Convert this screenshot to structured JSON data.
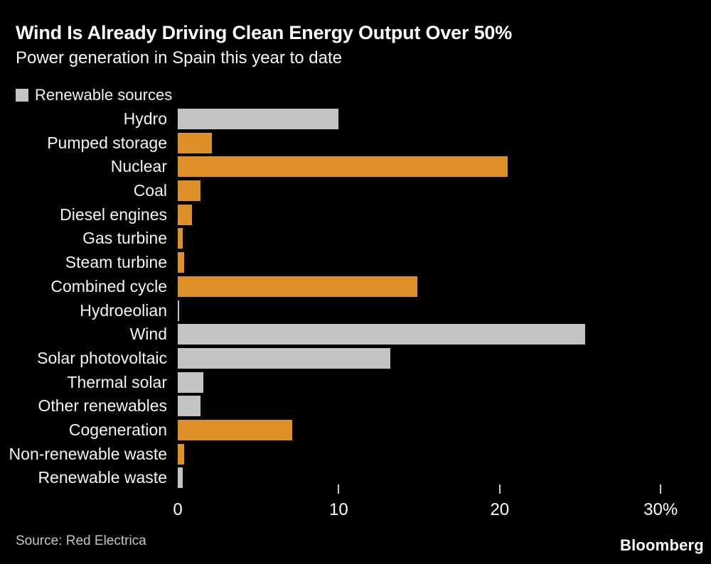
{
  "colors": {
    "background": "#000000",
    "renewable_bar": "#c3c3c4",
    "non_renewable_bar": "#dd9128",
    "tick": "#c9c9c9",
    "label_text": "#f5f5f5",
    "source_text": "#c4c4c4"
  },
  "chart_data": {
    "type": "bar",
    "orientation": "horizontal",
    "title": "Wind Is Already Driving Clean Energy Output Over 50%",
    "subtitle": "Power generation in Spain this year to date",
    "categories": [
      "Hydro",
      "Pumped storage",
      "Nuclear",
      "Coal",
      "Diesel engines",
      "Gas turbine",
      "Steam turbine",
      "Combined cycle",
      "Hydroeolian",
      "Wind",
      "Solar photovoltaic",
      "Thermal solar",
      "Other renewables",
      "Cogeneration",
      "Non-renewable waste",
      "Renewable waste"
    ],
    "values": [
      10.0,
      2.1,
      20.5,
      1.4,
      0.9,
      0.3,
      0.4,
      14.9,
      0.1,
      25.3,
      13.2,
      1.6,
      1.4,
      7.1,
      0.4,
      0.3
    ],
    "renewable": [
      true,
      false,
      false,
      false,
      false,
      false,
      false,
      false,
      true,
      true,
      true,
      true,
      true,
      false,
      false,
      true
    ],
    "xlim": [
      0,
      32
    ],
    "xticks": [
      0,
      10,
      20,
      30
    ],
    "xtick_labels": [
      "0",
      "10",
      "20",
      "30%"
    ],
    "xtick_marks": [
      false,
      true,
      true,
      true
    ],
    "grid": false,
    "legend": [
      {
        "label": "Renewable sources",
        "color": "#c3c3c4"
      }
    ],
    "legend_position": "top-left"
  },
  "footer": {
    "source": "Source: Red Electrica",
    "brand": "Bloomberg"
  }
}
